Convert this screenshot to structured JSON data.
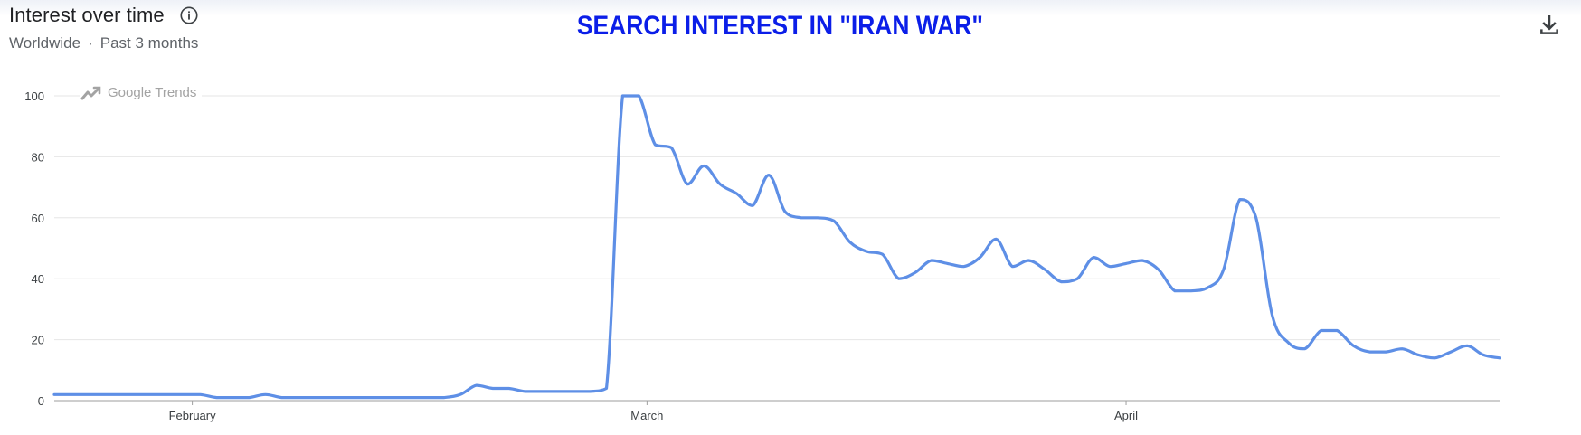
{
  "header": {
    "title": "Interest over time",
    "region": "Worldwide",
    "separator": "·",
    "period": "Past 3 months"
  },
  "annotation": "SEARCH INTEREST IN \"IRAN WAR\"",
  "watermark": "Google Trends",
  "icons": {
    "info": "info-icon",
    "download": "download-icon",
    "trends_logo": "trends-logo-icon"
  },
  "colors": {
    "line": "#5e8fe6",
    "grid": "#e6e6e6",
    "annotation": "#0b1ee8"
  },
  "chart_data": {
    "type": "line",
    "title": "",
    "xlabel": "",
    "ylabel": "",
    "ylim": [
      0,
      100
    ],
    "yticks": [
      0,
      20,
      40,
      60,
      80,
      100
    ],
    "xtick_labels": [
      {
        "label": "February",
        "index": 8.5
      },
      {
        "label": "March",
        "index": 36.5
      },
      {
        "label": "April",
        "index": 66
      }
    ],
    "grid": true,
    "legend": "none",
    "series": [
      {
        "values": [
          2,
          2,
          2,
          2,
          2,
          2,
          2,
          2,
          2,
          2,
          1,
          1,
          1,
          2,
          1,
          1,
          1,
          1,
          1,
          1,
          1,
          1,
          1,
          1,
          1,
          2,
          5,
          4,
          4,
          3,
          3,
          3,
          3,
          3,
          4,
          100,
          100,
          84,
          83,
          71,
          77,
          71,
          68,
          64,
          74,
          62,
          60,
          60,
          59,
          52,
          49,
          48,
          40,
          42,
          46,
          45,
          44,
          47,
          53,
          44,
          46,
          43,
          39,
          40,
          47,
          44,
          45,
          46,
          43,
          36,
          36,
          37,
          43,
          66,
          60,
          28,
          19,
          17,
          23,
          23,
          18,
          16,
          16,
          17,
          15,
          14,
          16,
          18,
          15,
          14
        ]
      }
    ]
  }
}
